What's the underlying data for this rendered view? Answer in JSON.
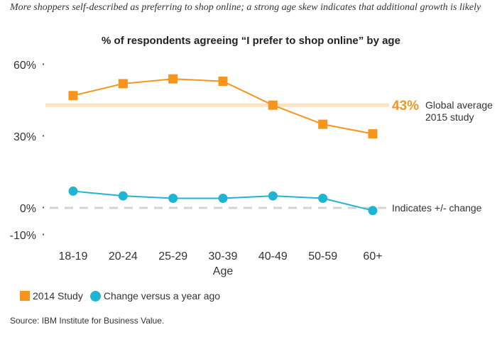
{
  "header": {
    "subtitle": "More shoppers self-described as preferring to shop online; a strong age skew indicates that additional growth is likely"
  },
  "footer": {
    "source": "Source: IBM Institute for Business Value."
  },
  "colors": {
    "study": "#f7941d",
    "change": "#1fb4d4",
    "average_band": "#fde2c3",
    "zero_line": "#d4d4d4"
  },
  "chart_data": {
    "type": "line",
    "title": "% of respondents agreeing “I prefer to shop online” by age",
    "xlabel": "Age",
    "ylabel": "",
    "categories": [
      "18-19",
      "20-24",
      "25-29",
      "30-39",
      "40-49",
      "50-59",
      "60+"
    ],
    "y_ticks": [
      {
        "value": 60,
        "label": "60%"
      },
      {
        "value": 30,
        "label": "30%"
      },
      {
        "value": 0,
        "label": "0%"
      },
      {
        "value": -10,
        "label": "-10%"
      }
    ],
    "ylim": [
      -10,
      60
    ],
    "grid": false,
    "legend_position": "bottom-left",
    "series": [
      {
        "name": "2014 Study",
        "marker": "square",
        "values": [
          47,
          52,
          54,
          53,
          43,
          35,
          31
        ]
      },
      {
        "name": "Change versus a year ago",
        "marker": "circle",
        "values": [
          7,
          5,
          4,
          4,
          5,
          4,
          -1
        ]
      }
    ],
    "annotations": {
      "average": {
        "value": 43,
        "value_label": "43%",
        "text_line1": "Global average",
        "text_line2": "2015 study"
      },
      "zero": {
        "text": "Indicates +/- change"
      }
    }
  }
}
